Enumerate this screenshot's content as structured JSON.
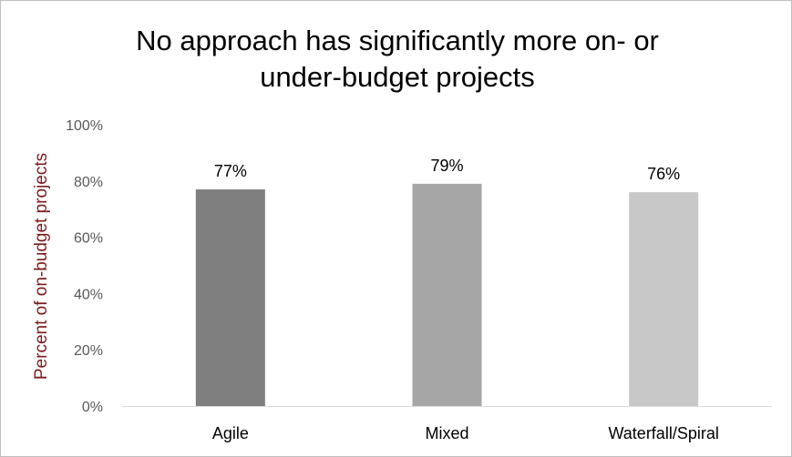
{
  "chart_data": {
    "type": "bar",
    "title_lines": [
      "No approach has significantly more on- or",
      "under-budget projects"
    ],
    "xlabel": "",
    "ylabel": "Percent of on-budget projects",
    "categories": [
      "Agile",
      "Mixed",
      "Waterfall/Spiral"
    ],
    "values": [
      77,
      79,
      76
    ],
    "data_labels": [
      "77%",
      "79%",
      "76%"
    ],
    "ylim": [
      0,
      100
    ],
    "yticks": [
      0,
      20,
      40,
      60,
      80,
      100
    ],
    "ytick_labels": [
      "0%",
      "20%",
      "40%",
      "60%",
      "80%",
      "100%"
    ],
    "colors": [
      "#7f7f7f",
      "#a6a6a6",
      "#c8c8c8"
    ],
    "ylabel_color": "#7b1c1c",
    "grid": false,
    "legend": "none"
  }
}
